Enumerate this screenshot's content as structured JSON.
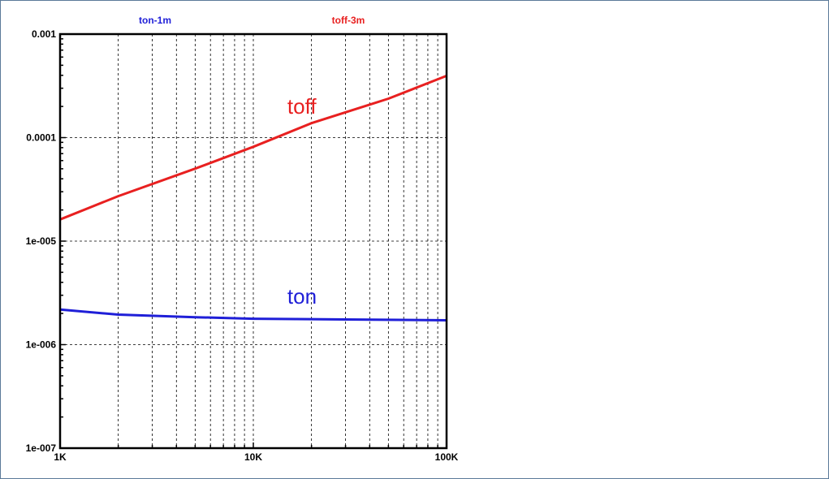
{
  "chart_data": {
    "type": "line",
    "title": "",
    "xlabel": "",
    "ylabel": "",
    "x_scale": "log",
    "y_scale": "log",
    "xlim": [
      1000,
      100000
    ],
    "ylim": [
      1e-07,
      0.001
    ],
    "grid": true,
    "x_tick_labels": [
      {
        "value": 1000,
        "label": "1K"
      },
      {
        "value": 10000,
        "label": "10K"
      },
      {
        "value": 100000,
        "label": "100K"
      }
    ],
    "y_tick_labels": [
      {
        "value": 0.001,
        "label": "0.001"
      },
      {
        "value": 0.0001,
        "label": "0.0001"
      },
      {
        "value": 1e-05,
        "label": "1e-005"
      },
      {
        "value": 1e-06,
        "label": "1e-006"
      },
      {
        "value": 1e-07,
        "label": "1e-007"
      }
    ],
    "legend": {
      "placement": "top",
      "entries": [
        {
          "label": "ton-1m",
          "color": "#1f1fd8"
        },
        {
          "label": "toff-3m",
          "color": "#e82020"
        }
      ]
    },
    "series": [
      {
        "label": "toff",
        "color": "#e82020",
        "points": [
          [
            1000,
            1.62e-05
          ],
          [
            2000,
            2.72e-05
          ],
          [
            5000,
            5.02e-05
          ],
          [
            10000,
            8.15e-05
          ],
          [
            20000,
            0.000138
          ],
          [
            50000,
            0.000238
          ],
          [
            100000,
            0.000395
          ]
        ]
      },
      {
        "label": "ton",
        "color": "#1f1fd8",
        "points": [
          [
            1000,
            2.18e-06
          ],
          [
            2000,
            1.95e-06
          ],
          [
            5000,
            1.84e-06
          ],
          [
            10000,
            1.78e-06
          ],
          [
            30000,
            1.75e-06
          ],
          [
            100000,
            1.72e-06
          ]
        ]
      }
    ],
    "annotations": [
      {
        "text": "toff",
        "x": 15000,
        "y": 0.00017,
        "color": "#e82020"
      },
      {
        "text": "ton",
        "x": 15000,
        "y": 2.5e-06,
        "color": "#1f1fd8"
      }
    ]
  }
}
